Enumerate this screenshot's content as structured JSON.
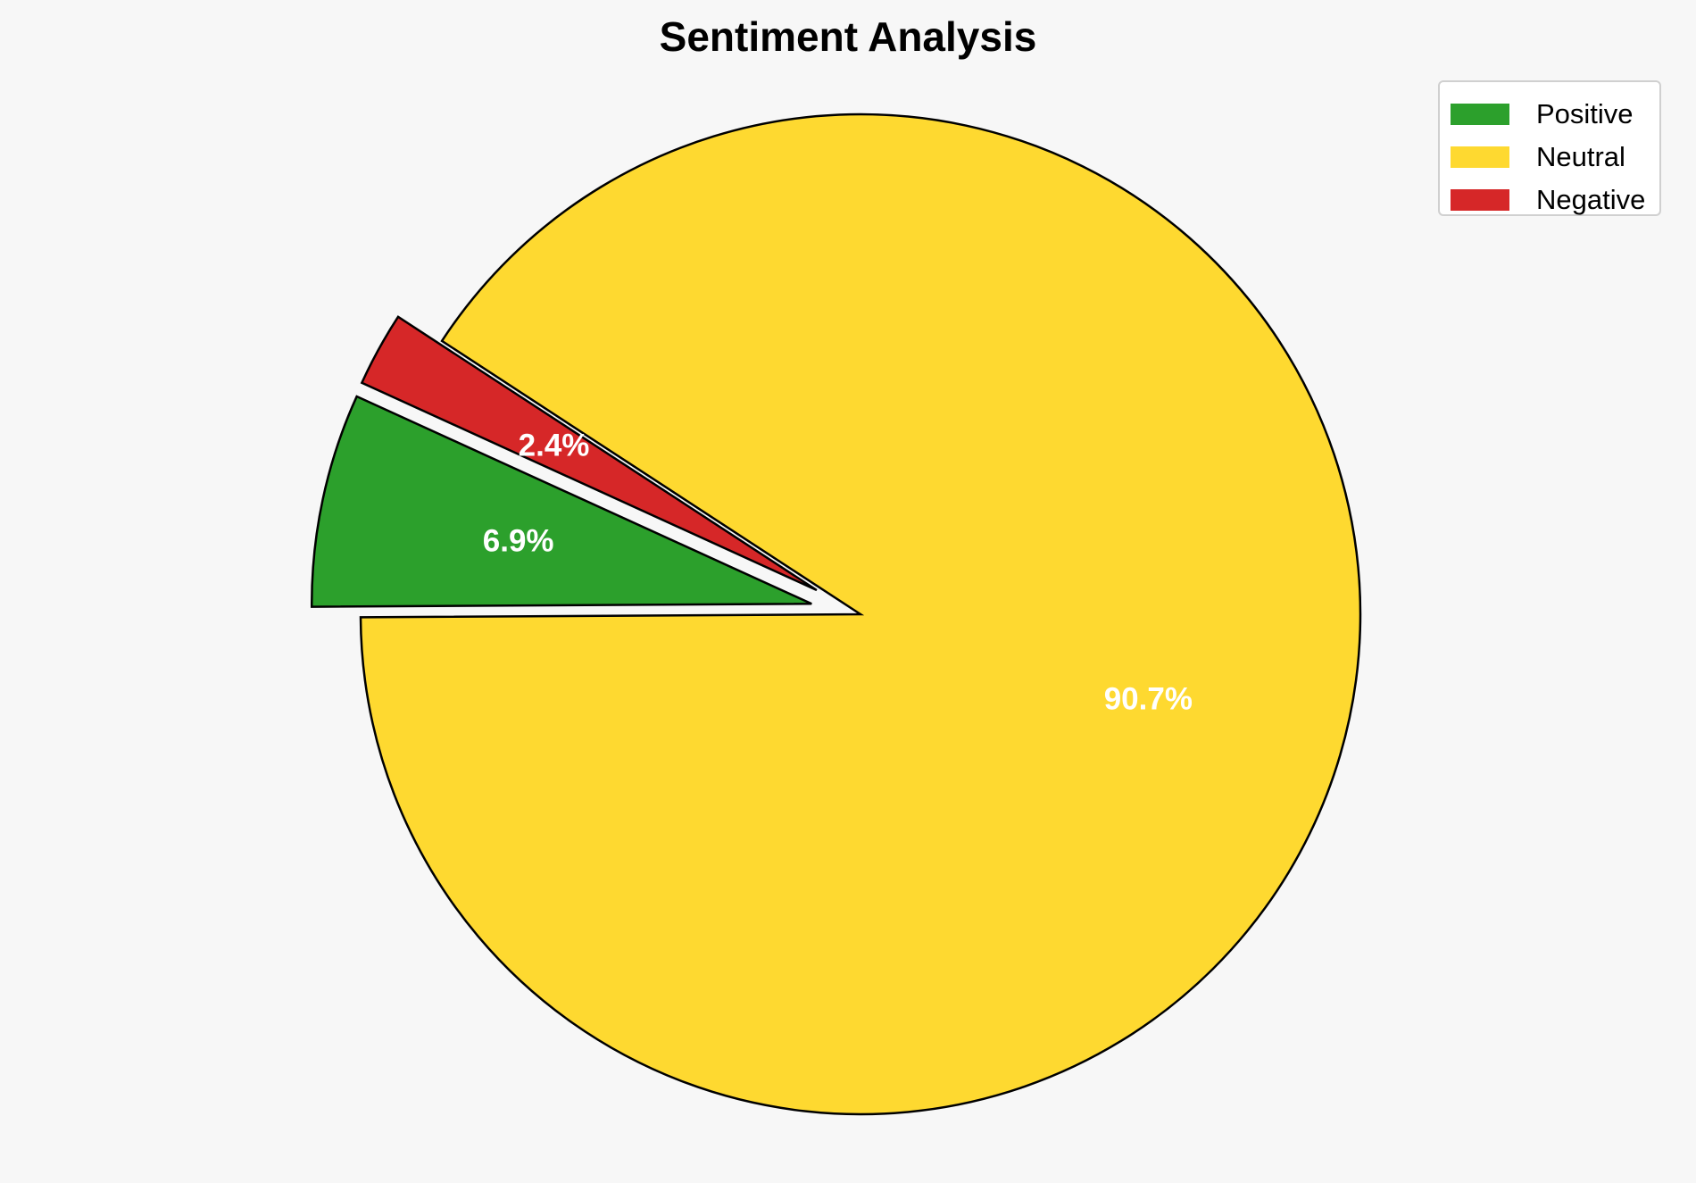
{
  "chart_data": {
    "type": "pie",
    "title": "Sentiment Analysis",
    "slices": [
      {
        "name": "Positive",
        "value": 6.9,
        "label": "6.9%",
        "color": "#2ca02c",
        "exploded": true
      },
      {
        "name": "Neutral",
        "value": 90.7,
        "label": "90.7%",
        "color": "#fed930",
        "exploded": false
      },
      {
        "name": "Negative",
        "value": 2.4,
        "label": "2.4%",
        "color": "#d62728",
        "exploded": true
      }
    ],
    "legend": {
      "placement": "top-right",
      "entries": [
        "Positive",
        "Neutral",
        "Negative"
      ]
    },
    "background": "#f7f7f7"
  }
}
